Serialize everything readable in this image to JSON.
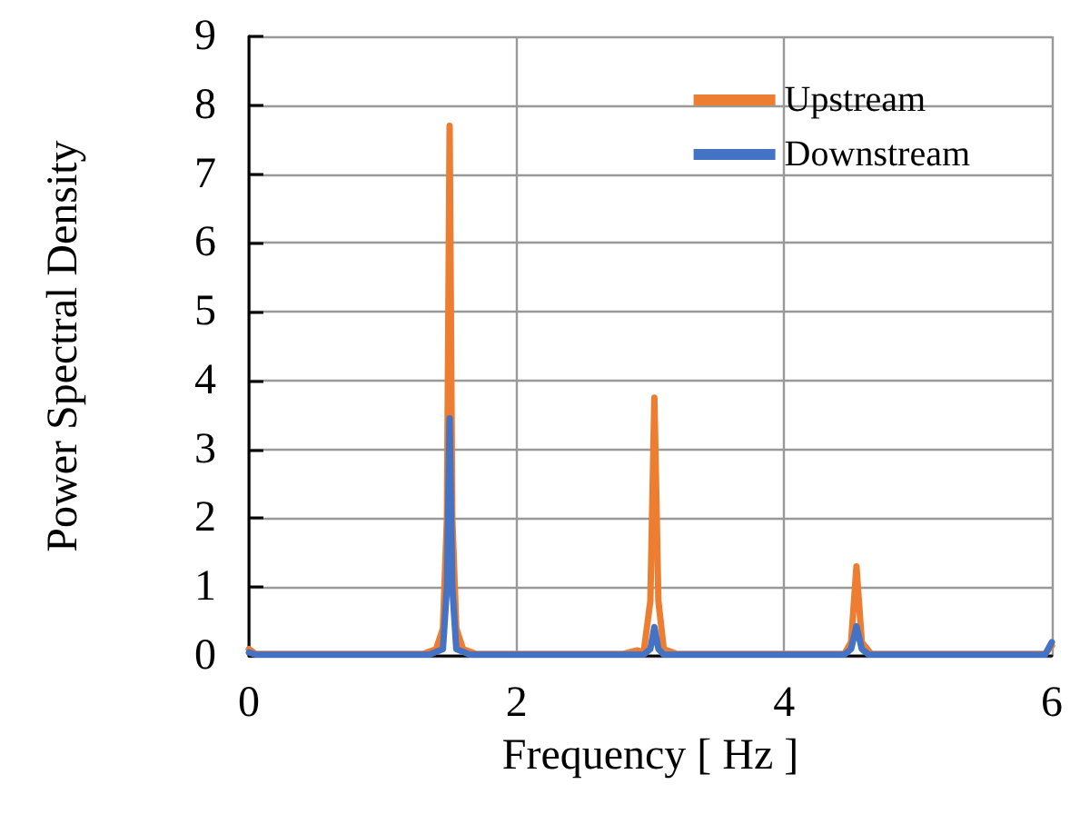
{
  "chart_data": {
    "type": "line",
    "xlabel": "Frequency [ Hz ]",
    "ylabel": "Power Spectral Density",
    "xlim": [
      0,
      6
    ],
    "xticks": [
      0,
      2,
      4,
      6
    ],
    "ylim": [
      0,
      9
    ],
    "yticks": [
      0,
      1,
      2,
      3,
      4,
      5,
      6,
      7,
      8,
      9
    ],
    "grid": true,
    "legend": "top right",
    "marker": "none",
    "line_style": "solid",
    "series": [
      {
        "name": "Upstream",
        "color": "#ed7d31",
        "x": [
          0,
          0.05,
          1.3,
          1.4,
          1.45,
          1.48,
          1.5,
          1.52,
          1.55,
          1.6,
          1.7,
          2.8,
          2.9,
          2.95,
          3.0,
          3.03,
          3.06,
          3.1,
          3.2,
          4.45,
          4.5,
          4.54,
          4.58,
          4.65,
          5.95,
          6
        ],
        "values": [
          0.1,
          0.03,
          0.03,
          0.1,
          0.4,
          2,
          7.7,
          2,
          0.4,
          0.1,
          0.03,
          0.03,
          0.08,
          0.05,
          0.8,
          3.75,
          0.8,
          0.1,
          0.03,
          0.03,
          0.2,
          1.3,
          0.2,
          0.03,
          0.03,
          0.15
        ]
      },
      {
        "name": "Downstream",
        "color": "#4472c4",
        "x": [
          0,
          0.05,
          1.35,
          1.45,
          1.48,
          1.5,
          1.52,
          1.55,
          1.65,
          2.95,
          3.0,
          3.03,
          3.06,
          3.1,
          4.45,
          4.5,
          4.54,
          4.58,
          4.63,
          5.95,
          6
        ],
        "values": [
          0.05,
          0.02,
          0.02,
          0.1,
          1,
          3.45,
          1,
          0.1,
          0.02,
          0.02,
          0.1,
          0.42,
          0.1,
          0.02,
          0.02,
          0.1,
          0.43,
          0.1,
          0.02,
          0.02,
          0.2
        ]
      }
    ]
  }
}
